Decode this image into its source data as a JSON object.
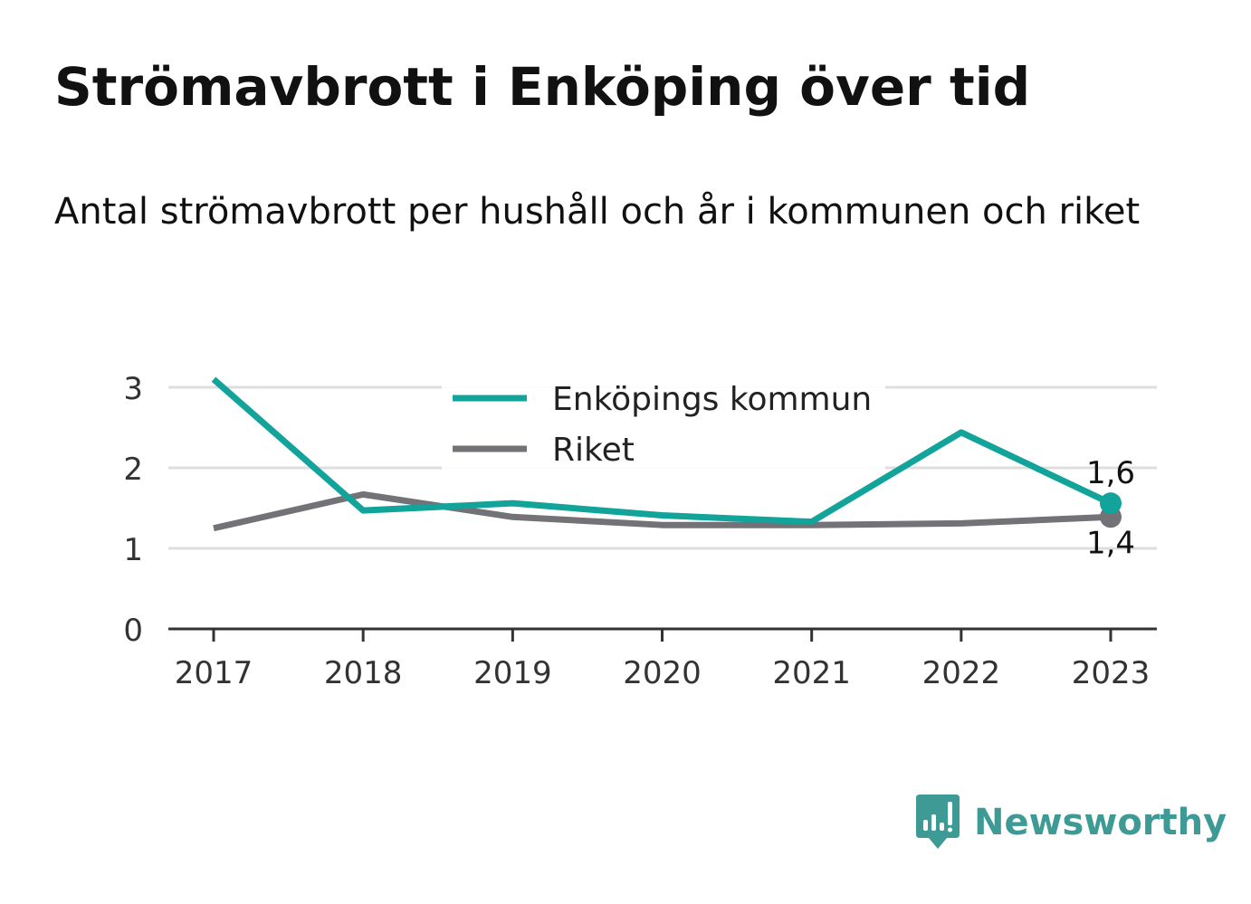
{
  "header": {
    "title": "Strömavbrott i Enköping över tid",
    "subtitle": "Antal strömavbrott per hushåll och år i kommunen och riket"
  },
  "brand": {
    "name": "Newsworthy",
    "icon": "newsworthy-chart-icon",
    "color": "#3d9a94"
  },
  "chart_data": {
    "type": "line",
    "x": [
      "2017",
      "2018",
      "2019",
      "2020",
      "2021",
      "2022",
      "2023"
    ],
    "ylim": [
      0,
      3.2
    ],
    "yticks": [
      0,
      1,
      2,
      3
    ],
    "grid": true,
    "legend": "top-center",
    "series": [
      {
        "name": "Enköpings kommun",
        "color": "#12a39a",
        "values": [
          3.1,
          1.47,
          1.56,
          1.41,
          1.33,
          2.44,
          1.56
        ],
        "end_label": "1,6"
      },
      {
        "name": "Riket",
        "color": "#737277",
        "values": [
          1.25,
          1.67,
          1.39,
          1.29,
          1.29,
          1.31,
          1.39
        ],
        "end_label": "1,4"
      }
    ]
  }
}
